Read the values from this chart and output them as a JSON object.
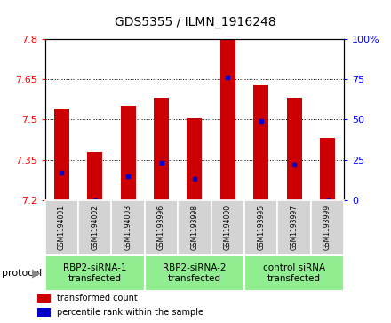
{
  "title": "GDS5355 / ILMN_1916248",
  "samples": [
    "GSM1194001",
    "GSM1194002",
    "GSM1194003",
    "GSM1193996",
    "GSM1193998",
    "GSM1194000",
    "GSM1193995",
    "GSM1193997",
    "GSM1193999"
  ],
  "groups": [
    {
      "label": "RBP2-siRNA-1\ntransfected",
      "start": 0,
      "end": 2
    },
    {
      "label": "RBP2-siRNA-2\ntransfected",
      "start": 3,
      "end": 5
    },
    {
      "label": "control siRNA\ntransfected",
      "start": 6,
      "end": 8
    }
  ],
  "transformed_counts": [
    7.54,
    7.38,
    7.55,
    7.58,
    7.505,
    7.8,
    7.63,
    7.58,
    7.43
  ],
  "percentile_ranks": [
    17,
    0,
    15,
    23,
    13,
    76,
    49,
    22,
    0
  ],
  "ylim_left": [
    7.2,
    7.8
  ],
  "ylim_right": [
    0,
    100
  ],
  "yticks_left": [
    7.2,
    7.35,
    7.5,
    7.65,
    7.8
  ],
  "yticks_right": [
    0,
    25,
    50,
    75,
    100
  ],
  "bar_color": "#CC0000",
  "dot_color": "#0000CC",
  "bar_bottom": 7.2,
  "cell_bg_color": "#D3D3D3",
  "group_bg_color": "#90EE90",
  "legend_red_label": "transformed count",
  "legend_blue_label": "percentile rank within the sample",
  "protocol_label": "protocol",
  "title_fontsize": 10,
  "tick_fontsize": 8,
  "sample_fontsize": 5.5,
  "group_fontsize": 7.5,
  "legend_fontsize": 7,
  "bar_width": 0.45
}
